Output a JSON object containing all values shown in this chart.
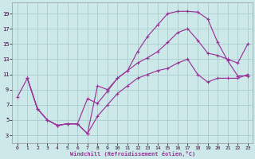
{
  "xlabel": "Windchill (Refroidissement éolien,°C)",
  "background_color": "#cce8e8",
  "grid_color": "#aacccc",
  "line_color": "#993399",
  "xlim": [
    -0.5,
    23.5
  ],
  "ylim": [
    2.0,
    20.5
  ],
  "xticks": [
    0,
    1,
    2,
    3,
    4,
    5,
    6,
    7,
    8,
    9,
    10,
    11,
    12,
    13,
    14,
    15,
    16,
    17,
    18,
    19,
    20,
    21,
    22,
    23
  ],
  "yticks": [
    3,
    5,
    7,
    9,
    11,
    13,
    15,
    17,
    19
  ],
  "curve1_x": [
    0,
    1,
    2,
    3,
    4,
    5,
    6,
    7,
    8,
    9,
    10,
    11,
    12,
    13,
    14,
    15,
    16,
    17,
    18,
    19,
    20,
    21,
    22,
    23
  ],
  "curve1_y": [
    8.0,
    10.5,
    6.5,
    5.0,
    4.3,
    4.5,
    4.5,
    3.2,
    9.5,
    9.0,
    10.5,
    11.5,
    14.0,
    16.0,
    17.5,
    19.0,
    19.3,
    19.3,
    19.2,
    18.3,
    15.2,
    12.8,
    10.8,
    10.8
  ],
  "curve2_x": [
    1,
    2,
    3,
    4,
    5,
    6,
    7,
    8,
    9,
    10,
    11,
    12,
    13,
    14,
    15,
    16,
    17,
    18,
    19,
    20,
    21,
    22,
    23
  ],
  "curve2_y": [
    10.5,
    6.5,
    5.0,
    4.3,
    4.5,
    4.5,
    7.8,
    7.2,
    8.8,
    10.5,
    11.5,
    12.5,
    13.2,
    14.0,
    15.2,
    16.5,
    17.0,
    15.5,
    13.8,
    13.5,
    13.0,
    12.5,
    15.0
  ],
  "curve3_x": [
    1,
    2,
    3,
    4,
    5,
    6,
    7,
    8,
    9,
    10,
    11,
    12,
    13,
    14,
    15,
    16,
    17,
    18,
    19,
    20,
    21,
    22,
    23
  ],
  "curve3_y": [
    10.5,
    6.5,
    5.0,
    4.3,
    4.5,
    4.5,
    3.2,
    5.5,
    7.0,
    8.5,
    9.5,
    10.5,
    11.0,
    11.5,
    11.8,
    12.5,
    13.0,
    11.0,
    10.0,
    10.5,
    10.5,
    10.5,
    11.0
  ]
}
